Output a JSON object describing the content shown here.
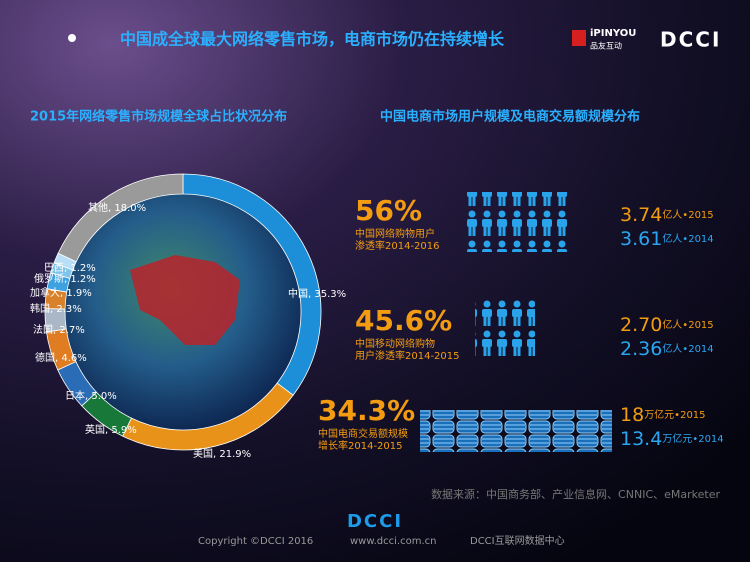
{
  "header": {
    "title": "中国成全球最大网络零售市场，电商市场仍在持续增长",
    "logo_mark": "iPINYOU",
    "logo_cn": "品友互动",
    "logo_dcci": "DCCI"
  },
  "chart_data": {
    "type": "donut",
    "title": "2015年网络零售市场规模全球占比状况分布",
    "categories": [
      "中国",
      "美国",
      "英国",
      "日本",
      "德国",
      "法国",
      "韩国",
      "加拿大",
      "俄罗斯",
      "巴西",
      "其他"
    ],
    "values": [
      35.3,
      21.9,
      5.9,
      5.0,
      4.6,
      2.7,
      2.3,
      1.9,
      1.2,
      1.2,
      18.0
    ],
    "value_labels": [
      "35.3%",
      "21.9%",
      "5.9%",
      "5.0%",
      "4.6%",
      "2.7%",
      "2.3%",
      "1.9%",
      "1.2%",
      "1.2%",
      "18.0%"
    ],
    "label_separator": ", ",
    "colors": [
      "#1d8fd8",
      "#e8921a",
      "#17783a",
      "#2a6cb5",
      "#e07c22",
      "#a9b7c6",
      "#d8802a",
      "#3fa2e0",
      "#7fc4ea",
      "#b8dff5",
      "#9a9a9a"
    ]
  },
  "stats": {
    "title": "中国电商市场用户规模及电商交易额规模分布",
    "rows": [
      {
        "rate": "56%",
        "desc": [
          "中国网络购物用户",
          "渗透率2014-2016"
        ],
        "figures": [
          {
            "value": "3.74",
            "unit": "亿人•2015"
          },
          {
            "value": "3.61",
            "unit": "亿人•2014"
          }
        ]
      },
      {
        "rate": "45.6%",
        "desc": [
          "中国移动网络购物",
          "用户渗透率2014-2015"
        ],
        "figures": [
          {
            "value": "2.70",
            "unit": "亿人•2015"
          },
          {
            "value": "2.36",
            "unit": "亿人•2014"
          }
        ]
      },
      {
        "rate": "34.3%",
        "desc": [
          "中国电商交易额规模",
          "增长率2014-2015"
        ],
        "figures": [
          {
            "value": "18",
            "unit": "万亿元•2015"
          },
          {
            "value": "13.4",
            "unit": "万亿元•2014"
          }
        ]
      }
    ]
  },
  "source": "数据来源：中国商务部、产业信息网、CNNIC、eMarketer",
  "footer": {
    "logo": "DCCI",
    "copyright": "Copyright ©DCCI 2016",
    "site": "www.dcci.com.cn",
    "org": "DCCI互联网数据中心"
  }
}
